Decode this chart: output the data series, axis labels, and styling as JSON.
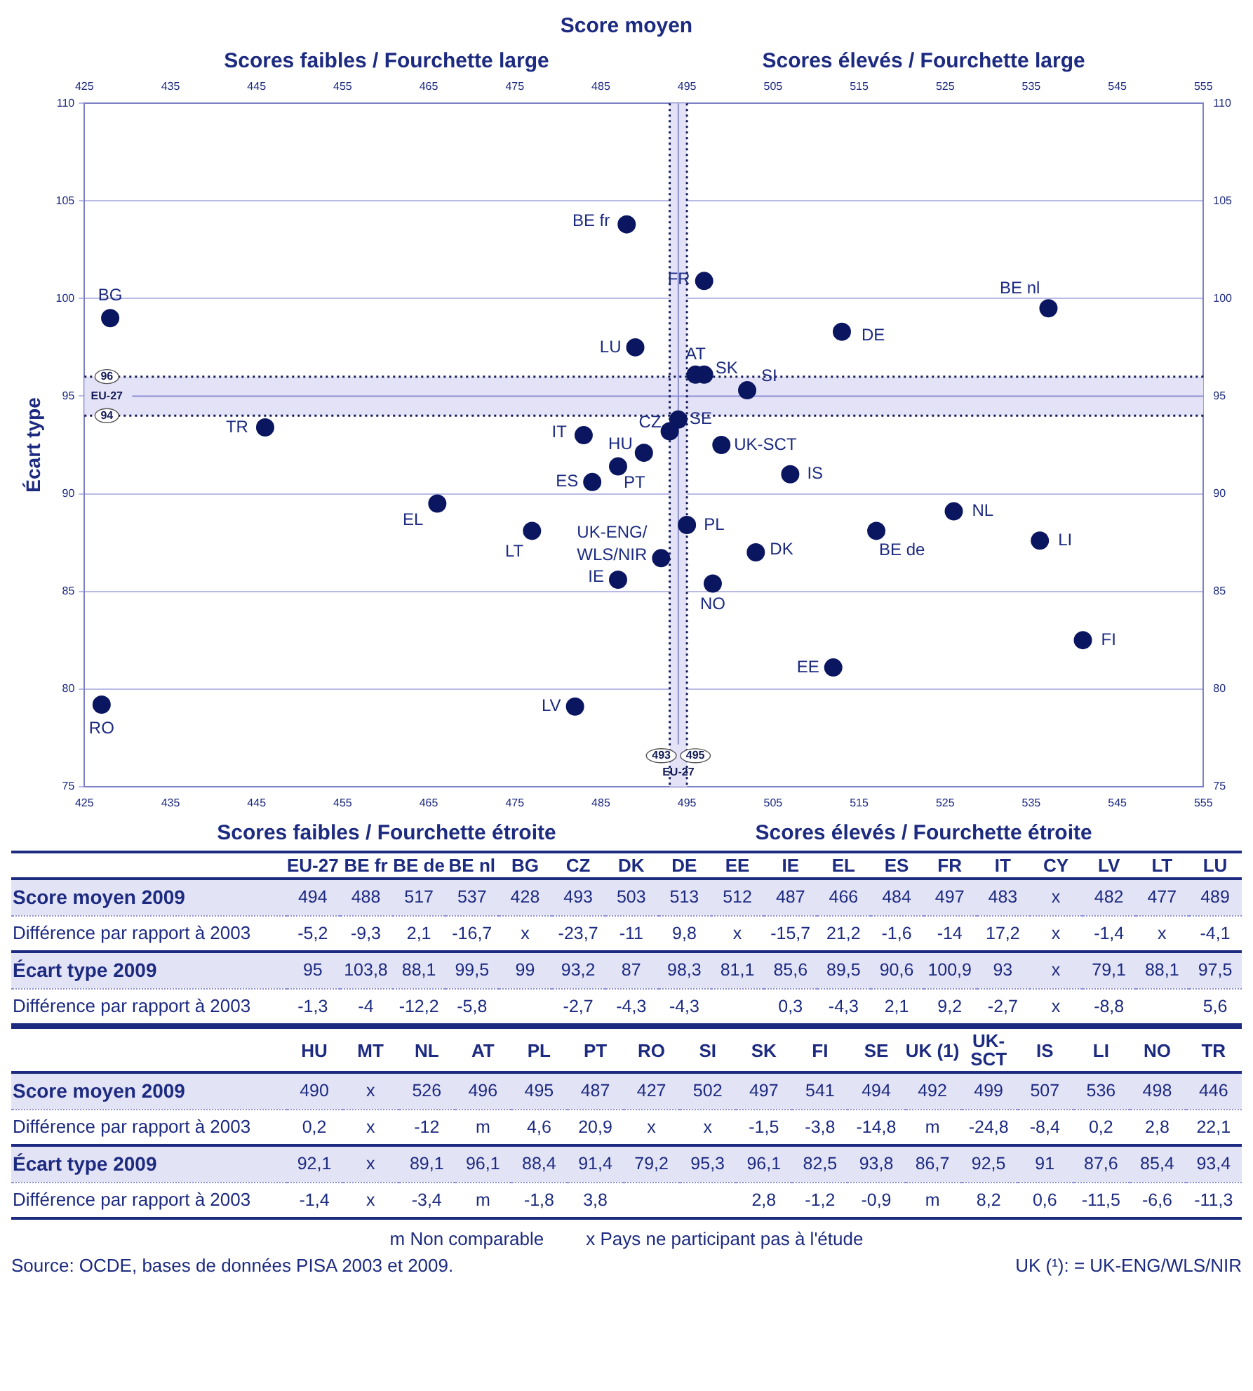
{
  "chart_data": [
    {
      "type": "scatter",
      "title": "Score moyen",
      "ylabel": "Écart type",
      "xlim": [
        425,
        555
      ],
      "xticks": [
        425,
        435,
        445,
        455,
        465,
        475,
        485,
        495,
        505,
        515,
        525,
        535,
        545,
        555
      ],
      "x2lim": [
        425,
        555
      ],
      "x2ticks": [
        425,
        435,
        445,
        455,
        465,
        475,
        485,
        495,
        505,
        515,
        525,
        535,
        545,
        555
      ],
      "ylim": [
        75,
        110
      ],
      "yticks": [
        75,
        80,
        85,
        90,
        95,
        100,
        105,
        110
      ],
      "y2lim": [
        75,
        110
      ],
      "y2ticks": [
        75,
        80,
        85,
        90,
        95,
        100,
        105,
        110
      ],
      "grid": "y",
      "legend": false,
      "marker": "circle",
      "bands": [
        {
          "axis": "y",
          "from": 94,
          "to": 96,
          "color": "#e4e2f7"
        },
        {
          "axis": "x",
          "from": 493,
          "to": 495,
          "color": "#e4e2f7"
        }
      ],
      "ref_lines": [
        {
          "axis": "y",
          "value": 95,
          "label": "EU-27",
          "color": "#8c8fd6",
          "line_style": "solid"
        },
        {
          "axis": "x",
          "value": 494,
          "label": "EU-27",
          "color": "#8c8fd6",
          "line_style": "solid"
        },
        {
          "axis": "y",
          "value": 96,
          "label": "96",
          "color": "#111a55",
          "line_style": "dotted"
        },
        {
          "axis": "y",
          "value": 94,
          "label": "94",
          "color": "#111a55",
          "line_style": "dotted"
        },
        {
          "axis": "x",
          "value": 493,
          "label": "493",
          "color": "#111a55",
          "line_style": "dotted"
        },
        {
          "axis": "x",
          "value": 495,
          "label": "495",
          "color": "#111a55",
          "line_style": "dotted"
        }
      ],
      "annotations": [
        "Scores faibles / Fourchette large",
        "Scores élevés / Fourchette large",
        "Scores faibles / Fourchette étroite",
        "Scores élevés / Fourchette étroite"
      ],
      "series": [
        {
          "name": "BE fr",
          "x": [
            488
          ],
          "values": [
            103.8
          ],
          "color": "#0b1660"
        },
        {
          "name": "BG",
          "x": [
            428
          ],
          "values": [
            99
          ],
          "color": "#0b1660"
        },
        {
          "name": "FR",
          "x": [
            497
          ],
          "values": [
            100.9
          ],
          "color": "#0b1660"
        },
        {
          "name": "BE nl",
          "x": [
            537
          ],
          "values": [
            99.5
          ],
          "color": "#0b1660"
        },
        {
          "name": "LU",
          "x": [
            489
          ],
          "values": [
            97.5
          ],
          "color": "#0b1660"
        },
        {
          "name": "DE",
          "x": [
            513
          ],
          "values": [
            98.3
          ],
          "color": "#0b1660"
        },
        {
          "name": "AT",
          "x": [
            496
          ],
          "values": [
            96.1
          ],
          "color": "#0b1660"
        },
        {
          "name": "SK",
          "x": [
            497
          ],
          "values": [
            96.1
          ],
          "color": "#0b1660"
        },
        {
          "name": "SI",
          "x": [
            502
          ],
          "values": [
            95.3
          ],
          "color": "#0b1660"
        },
        {
          "name": "TR",
          "x": [
            446
          ],
          "values": [
            93.4
          ],
          "color": "#0b1660"
        },
        {
          "name": "IT",
          "x": [
            483
          ],
          "values": [
            93
          ],
          "color": "#0b1660"
        },
        {
          "name": "CZ",
          "x": [
            493
          ],
          "values": [
            93.2
          ],
          "color": "#0b1660"
        },
        {
          "name": "SE",
          "x": [
            494
          ],
          "values": [
            93.8
          ],
          "color": "#0b1660"
        },
        {
          "name": "HU",
          "x": [
            490
          ],
          "values": [
            92.1
          ],
          "color": "#0b1660"
        },
        {
          "name": "UK-SCT",
          "x": [
            499
          ],
          "values": [
            92.5
          ],
          "color": "#0b1660"
        },
        {
          "name": "PT",
          "x": [
            487
          ],
          "values": [
            91.4
          ],
          "color": "#0b1660"
        },
        {
          "name": "ES",
          "x": [
            484
          ],
          "values": [
            90.6
          ],
          "color": "#0b1660"
        },
        {
          "name": "IS",
          "x": [
            507
          ],
          "values": [
            91
          ],
          "color": "#0b1660"
        },
        {
          "name": "EL",
          "x": [
            466
          ],
          "values": [
            89.5
          ],
          "color": "#0b1660"
        },
        {
          "name": "LT",
          "x": [
            477
          ],
          "values": [
            88.1
          ],
          "color": "#0b1660"
        },
        {
          "name": "UK-ENG/WLS/NIR",
          "x": [
            492
          ],
          "values": [
            86.7
          ],
          "color": "#0b1660"
        },
        {
          "name": "PL",
          "x": [
            495
          ],
          "values": [
            88.4
          ],
          "color": "#0b1660"
        },
        {
          "name": "DK",
          "x": [
            503
          ],
          "values": [
            87
          ],
          "color": "#0b1660"
        },
        {
          "name": "BE de",
          "x": [
            517
          ],
          "values": [
            88.1
          ],
          "color": "#0b1660"
        },
        {
          "name": "NL",
          "x": [
            526
          ],
          "values": [
            89.1
          ],
          "color": "#0b1660"
        },
        {
          "name": "LI",
          "x": [
            536
          ],
          "values": [
            87.6
          ],
          "color": "#0b1660"
        },
        {
          "name": "IE",
          "x": [
            487
          ],
          "values": [
            85.6
          ],
          "color": "#0b1660"
        },
        {
          "name": "NO",
          "x": [
            498
          ],
          "values": [
            85.4
          ],
          "color": "#0b1660"
        },
        {
          "name": "FI",
          "x": [
            541
          ],
          "values": [
            82.5
          ],
          "color": "#0b1660"
        },
        {
          "name": "EE",
          "x": [
            512
          ],
          "values": [
            81.1
          ],
          "color": "#0b1660"
        },
        {
          "name": "RO",
          "x": [
            427
          ],
          "values": [
            79.2
          ],
          "color": "#0b1660"
        },
        {
          "name": "LV",
          "x": [
            482
          ],
          "values": [
            79.1
          ],
          "color": "#0b1660"
        }
      ]
    },
    {
      "type": "other",
      "categories": [
        "EU-27",
        "BE fr",
        "BE de",
        "BE nl",
        "BG",
        "CZ",
        "DK",
        "DE",
        "EE",
        "IE",
        "EL",
        "ES",
        "FR",
        "IT",
        "CY",
        "LV",
        "LT",
        "LU"
      ],
      "series": [
        {
          "name": "Score moyen 2009",
          "values": [
            494,
            488,
            517,
            537,
            428,
            493,
            503,
            513,
            512,
            487,
            466,
            484,
            497,
            483,
            null,
            482,
            477,
            489
          ],
          "value_labels": [
            "494",
            "488",
            "517",
            "537",
            "428",
            "493",
            "503",
            "513",
            "512",
            "487",
            "466",
            "484",
            "497",
            "483",
            "x",
            "482",
            "477",
            "489"
          ]
        },
        {
          "name": "Différence par rapport à 2003",
          "values": [
            -5.2,
            -9.3,
            2.1,
            -16.7,
            null,
            -23.7,
            -11,
            9.8,
            null,
            -15.7,
            21.2,
            -1.6,
            -14,
            17.2,
            null,
            -1.4,
            null,
            -4.1
          ],
          "value_labels": [
            "-5,2",
            "-9,3",
            "2,1",
            "-16,7",
            "x",
            "-23,7",
            "-11",
            "9,8",
            "x",
            "-15,7",
            "21,2",
            "-1,6",
            "-14",
            "17,2",
            "x",
            "-1,4",
            "x",
            "-4,1"
          ]
        },
        {
          "name": "Écart type 2009",
          "values": [
            95,
            103.8,
            88.1,
            99.5,
            99,
            93.2,
            87,
            98.3,
            81.1,
            85.6,
            89.5,
            90.6,
            100.9,
            93,
            null,
            79.1,
            88.1,
            97.5
          ],
          "value_labels": [
            "95",
            "103,8",
            "88,1",
            "99,5",
            "99",
            "93,2",
            "87",
            "98,3",
            "81,1",
            "85,6",
            "89,5",
            "90,6",
            "100,9",
            "93",
            "x",
            "79,1",
            "88,1",
            "97,5"
          ]
        },
        {
          "name": "Différence par rapport à 2003",
          "values": [
            -1.3,
            -4,
            -12.2,
            -5.8,
            null,
            -2.7,
            -4.3,
            -4.3,
            null,
            0.3,
            -4.3,
            2.1,
            9.2,
            -2.7,
            null,
            -8.8,
            null,
            5.6
          ],
          "value_labels": [
            "-1,3",
            "-4",
            "-12,2",
            "-5,8",
            null,
            "-2,7",
            "-4,3",
            "-4,3",
            null,
            "0,3",
            "-4,3",
            "2,1",
            "9,2",
            "-2,7",
            "x",
            "-8,8",
            null,
            "5,6"
          ]
        }
      ]
    },
    {
      "type": "other",
      "categories": [
        "HU",
        "MT",
        "NL",
        "AT",
        "PL",
        "PT",
        "RO",
        "SI",
        "SK",
        "FI",
        "SE",
        "UK (1)",
        "UK-SCT",
        "IS",
        "LI",
        "NO",
        "TR"
      ],
      "series": [
        {
          "name": "Score moyen 2009",
          "values": [
            490,
            null,
            526,
            496,
            495,
            487,
            427,
            502,
            497,
            541,
            494,
            492,
            499,
            507,
            536,
            498,
            446
          ],
          "value_labels": [
            "490",
            "x",
            "526",
            "496",
            "495",
            "487",
            "427",
            "502",
            "497",
            "541",
            "494",
            "492",
            "499",
            "507",
            "536",
            "498",
            "446"
          ]
        },
        {
          "name": "Différence par rapport à 2003",
          "values": [
            0.2,
            null,
            -12,
            null,
            4.6,
            20.9,
            null,
            null,
            -1.5,
            -3.8,
            -14.8,
            null,
            -24.8,
            -8.4,
            0.2,
            2.8,
            22.1
          ],
          "value_labels": [
            "0,2",
            "x",
            "-12",
            "m",
            "4,6",
            "20,9",
            "x",
            "x",
            "-1,5",
            "-3,8",
            "-14,8",
            "m",
            "-24,8",
            "-8,4",
            "0,2",
            "2,8",
            "22,1"
          ]
        },
        {
          "name": "Écart type 2009",
          "values": [
            92.1,
            null,
            89.1,
            96.1,
            88.4,
            91.4,
            79.2,
            95.3,
            96.1,
            82.5,
            93.8,
            86.7,
            92.5,
            91,
            87.6,
            85.4,
            93.4
          ],
          "value_labels": [
            "92,1",
            "x",
            "89,1",
            "96,1",
            "88,4",
            "91,4",
            "79,2",
            "95,3",
            "96,1",
            "82,5",
            "93,8",
            "86,7",
            "92,5",
            "91",
            "87,6",
            "85,4",
            "93,4"
          ]
        },
        {
          "name": "Différence par rapport à 2003",
          "values": [
            -1.4,
            null,
            -3.4,
            null,
            -1.8,
            3.8,
            null,
            null,
            2.8,
            -1.2,
            -0.9,
            null,
            8.2,
            0.6,
            -11.5,
            -6.6,
            -11.3
          ],
          "value_labels": [
            "-1,4",
            "x",
            "-3,4",
            "m",
            "-1,8",
            "3,8",
            null,
            null,
            "2,8",
            "-1,2",
            "-0,9",
            "m",
            "8,2",
            "0,6",
            "-11,5",
            "-6,6",
            "-11,3"
          ]
        }
      ],
      "annotations": [
        "m   Non comparable",
        "x   Pays ne participant pas à l'étude",
        "Source: OCDE, bases de données PISA 2003 et 2009.",
        "UK (¹): = UK-ENG/WLS/NIR"
      ]
    }
  ]
}
